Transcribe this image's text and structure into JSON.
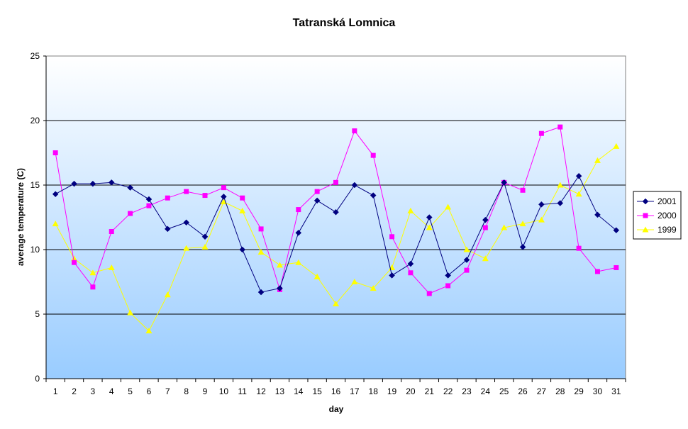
{
  "chart_data": {
    "type": "line",
    "title": "Tatranská Lomnica",
    "xlabel": "day",
    "ylabel": "average temperature (C)",
    "ylim": [
      0,
      25
    ],
    "yticks": [
      0,
      5,
      10,
      15,
      20,
      25
    ],
    "x": [
      1,
      2,
      3,
      4,
      5,
      6,
      7,
      8,
      9,
      10,
      11,
      12,
      13,
      14,
      15,
      16,
      17,
      18,
      19,
      20,
      21,
      22,
      23,
      24,
      25,
      26,
      27,
      28,
      29,
      30,
      31
    ],
    "grid": true,
    "legend_position": "right",
    "series": [
      {
        "name": "2001",
        "color": "#000080",
        "marker": "diamond",
        "values": [
          14.3,
          15.1,
          15.1,
          15.2,
          14.8,
          13.9,
          11.6,
          12.1,
          11.0,
          14.1,
          10.0,
          6.7,
          7.0,
          11.3,
          13.8,
          12.9,
          15.0,
          14.2,
          8.0,
          8.9,
          12.5,
          8.0,
          9.2,
          12.3,
          15.2,
          10.2,
          13.5,
          13.6,
          15.7,
          12.7,
          11.5
        ]
      },
      {
        "name": "2000",
        "color": "#FF00FF",
        "marker": "square",
        "values": [
          17.5,
          9.0,
          7.1,
          11.4,
          12.8,
          13.4,
          14.0,
          14.5,
          14.2,
          14.8,
          14.0,
          11.6,
          6.9,
          13.1,
          14.5,
          15.2,
          19.2,
          17.3,
          11.0,
          8.2,
          6.6,
          7.2,
          8.4,
          11.7,
          15.2,
          14.6,
          19.0,
          19.5,
          10.1,
          8.3,
          8.6
        ]
      },
      {
        "name": "1999",
        "color": "#FFFF00",
        "marker": "triangle",
        "values": [
          12.0,
          9.3,
          8.2,
          8.6,
          5.1,
          3.7,
          6.5,
          10.1,
          10.2,
          13.7,
          13.0,
          9.8,
          8.8,
          9.0,
          7.9,
          5.8,
          7.5,
          7.0,
          8.6,
          13.0,
          11.7,
          13.3,
          10.0,
          9.3,
          11.7,
          12.0,
          12.3,
          15.0,
          14.3,
          16.9,
          18.0
        ]
      }
    ]
  }
}
